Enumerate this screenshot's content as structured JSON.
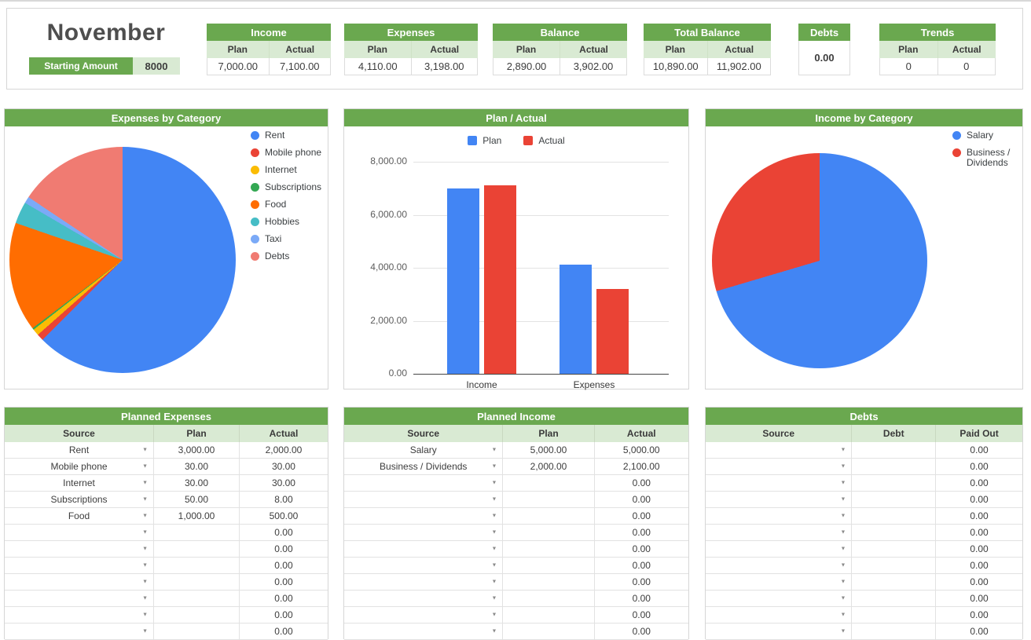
{
  "header": {
    "month": "November",
    "starting_amount": {
      "label": "Starting Amount",
      "value": "8000"
    },
    "cards": [
      {
        "title": "Income",
        "columns": [
          "Plan",
          "Actual"
        ],
        "values": [
          "7,000.00",
          "7,100.00"
        ]
      },
      {
        "title": "Expenses",
        "columns": [
          "Plan",
          "Actual"
        ],
        "values": [
          "4,110.00",
          "3,198.00"
        ]
      },
      {
        "title": "Balance",
        "columns": [
          "Plan",
          "Actual"
        ],
        "values": [
          "2,890.00",
          "3,902.00"
        ]
      },
      {
        "title": "Total Balance",
        "columns": [
          "Plan",
          "Actual"
        ],
        "values": [
          "10,890.00",
          "11,902.00"
        ]
      },
      {
        "title": "Debts",
        "single_value": "0.00"
      },
      {
        "title": "Trends",
        "columns": [
          "Plan",
          "Actual"
        ],
        "values": [
          "0",
          "0"
        ]
      }
    ]
  },
  "chart_data": [
    {
      "type": "pie",
      "title": "Expenses by Category",
      "labels": [
        "Rent",
        "Mobile phone",
        "Internet",
        "Subscriptions",
        "Food",
        "Hobbies",
        "Taxi",
        "Debts"
      ],
      "values": [
        2000,
        30,
        30,
        8,
        500,
        100,
        30,
        500
      ],
      "colors": [
        "#4285f4",
        "#ea4335",
        "#fbbc04",
        "#34a853",
        "#ff6d01",
        "#46bdc6",
        "#7baaf7",
        "#f07b72"
      ],
      "legend_position": "right"
    },
    {
      "type": "bar",
      "title": "Plan / Actual",
      "categories": [
        "Income",
        "Expenses"
      ],
      "series": [
        {
          "name": "Plan",
          "color": "#4285f4",
          "values": [
            7000,
            4110
          ]
        },
        {
          "name": "Actual",
          "color": "#ea4335",
          "values": [
            7100,
            3198
          ]
        }
      ],
      "ylim": [
        0,
        8000
      ],
      "yticks": [
        [
          0,
          "0.00"
        ],
        [
          2000,
          "2,000.00"
        ],
        [
          4000,
          "4,000.00"
        ],
        [
          6000,
          "6,000.00"
        ],
        [
          8000,
          "8,000.00"
        ]
      ],
      "legend_position": "top",
      "grid": true
    },
    {
      "type": "pie",
      "title": "Income by Category",
      "labels": [
        "Salary",
        "Business / Dividends"
      ],
      "values": [
        5000,
        2100
      ],
      "colors": [
        "#4285f4",
        "#ea4335"
      ],
      "legend_position": "right"
    }
  ],
  "tables": {
    "planned_expenses": {
      "title": "Planned Expenses",
      "columns": [
        "Source",
        "Plan",
        "Actual"
      ],
      "rows": [
        [
          "Rent",
          "3,000.00",
          "2,000.00"
        ],
        [
          "Mobile phone",
          "30.00",
          "30.00"
        ],
        [
          "Internet",
          "30.00",
          "30.00"
        ],
        [
          "Subscriptions",
          "50.00",
          "8.00"
        ],
        [
          "Food",
          "1,000.00",
          "500.00"
        ],
        [
          "",
          "",
          "0.00"
        ],
        [
          "",
          "",
          "0.00"
        ],
        [
          "",
          "",
          "0.00"
        ],
        [
          "",
          "",
          "0.00"
        ],
        [
          "",
          "",
          "0.00"
        ],
        [
          "",
          "",
          "0.00"
        ],
        [
          "",
          "",
          "0.00"
        ]
      ]
    },
    "planned_income": {
      "title": "Planned Income",
      "columns": [
        "Source",
        "Plan",
        "Actual"
      ],
      "rows": [
        [
          "Salary",
          "5,000.00",
          "5,000.00"
        ],
        [
          "Business / Dividends",
          "2,000.00",
          "2,100.00"
        ],
        [
          "",
          "",
          "0.00"
        ],
        [
          "",
          "",
          "0.00"
        ],
        [
          "",
          "",
          "0.00"
        ],
        [
          "",
          "",
          "0.00"
        ],
        [
          "",
          "",
          "0.00"
        ],
        [
          "",
          "",
          "0.00"
        ],
        [
          "",
          "",
          "0.00"
        ],
        [
          "",
          "",
          "0.00"
        ],
        [
          "",
          "",
          "0.00"
        ],
        [
          "",
          "",
          "0.00"
        ]
      ]
    },
    "debts": {
      "title": "Debts",
      "columns": [
        "Source",
        "Debt",
        "Paid Out"
      ],
      "rows": [
        [
          "",
          "",
          "0.00"
        ],
        [
          "",
          "",
          "0.00"
        ],
        [
          "",
          "",
          "0.00"
        ],
        [
          "",
          "",
          "0.00"
        ],
        [
          "",
          "",
          "0.00"
        ],
        [
          "",
          "",
          "0.00"
        ],
        [
          "",
          "",
          "0.00"
        ],
        [
          "",
          "",
          "0.00"
        ],
        [
          "",
          "",
          "0.00"
        ],
        [
          "",
          "",
          "0.00"
        ],
        [
          "",
          "",
          "0.00"
        ],
        [
          "",
          "",
          "0.00"
        ]
      ]
    }
  },
  "colors": {
    "accent_green": "#6aa84f",
    "light_green": "#d9ead3",
    "panel_border": "#d6d6d6",
    "plan_blue": "#4285f4",
    "actual_red": "#ea4335"
  }
}
